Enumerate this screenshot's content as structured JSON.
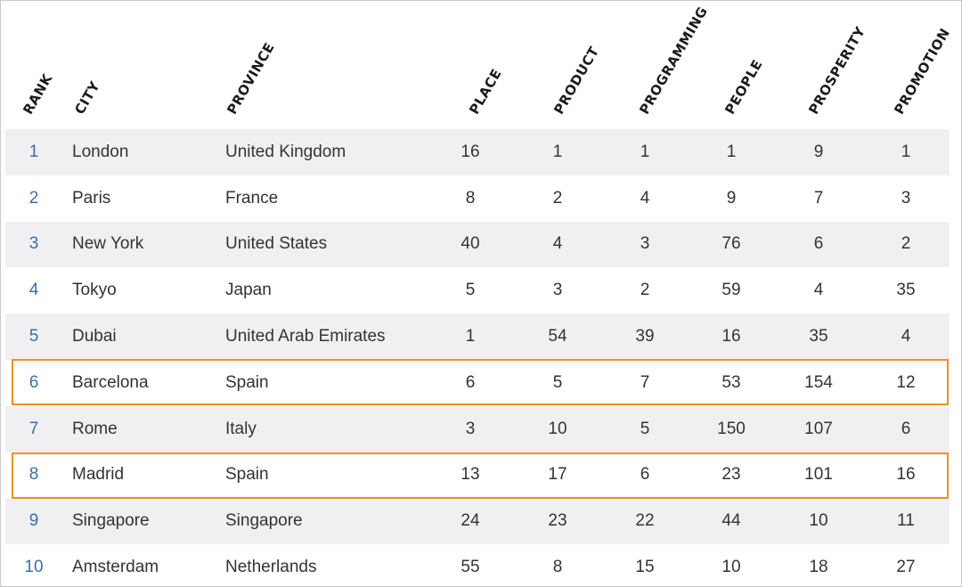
{
  "table": {
    "columns": [
      "RANK",
      "CITY",
      "PROVINCE",
      "PLACE",
      "PRODUCT",
      "PROGRAMMING",
      "PEOPLE",
      "PROSPERITY",
      "PROMOTION"
    ],
    "rows": [
      {
        "rank": "1",
        "city": "London",
        "province": "United Kingdom",
        "place": "16",
        "product": "1",
        "programming": "1",
        "people": "1",
        "prosperity": "9",
        "promotion": "1"
      },
      {
        "rank": "2",
        "city": "Paris",
        "province": "France",
        "place": "8",
        "product": "2",
        "programming": "4",
        "people": "9",
        "prosperity": "7",
        "promotion": "3"
      },
      {
        "rank": "3",
        "city": "New York",
        "province": "United States",
        "place": "40",
        "product": "4",
        "programming": "3",
        "people": "76",
        "prosperity": "6",
        "promotion": "2"
      },
      {
        "rank": "4",
        "city": "Tokyo",
        "province": "Japan",
        "place": "5",
        "product": "3",
        "programming": "2",
        "people": "59",
        "prosperity": "4",
        "promotion": "35"
      },
      {
        "rank": "5",
        "city": "Dubai",
        "province": "United Arab Emirates",
        "place": "1",
        "product": "54",
        "programming": "39",
        "people": "16",
        "prosperity": "35",
        "promotion": "4"
      },
      {
        "rank": "6",
        "city": "Barcelona",
        "province": "Spain",
        "place": "6",
        "product": "5",
        "programming": "7",
        "people": "53",
        "prosperity": "154",
        "promotion": "12"
      },
      {
        "rank": "7",
        "city": "Rome",
        "province": "Italy",
        "place": "3",
        "product": "10",
        "programming": "5",
        "people": "150",
        "prosperity": "107",
        "promotion": "6"
      },
      {
        "rank": "8",
        "city": "Madrid",
        "province": "Spain",
        "place": "13",
        "product": "17",
        "programming": "6",
        "people": "23",
        "prosperity": "101",
        "promotion": "16"
      },
      {
        "rank": "9",
        "city": "Singapore",
        "province": "Singapore",
        "place": "24",
        "product": "23",
        "programming": "22",
        "people": "44",
        "prosperity": "10",
        "promotion": "11"
      },
      {
        "rank": "10",
        "city": "Amsterdam",
        "province": "Netherlands",
        "place": "55",
        "product": "8",
        "programming": "15",
        "people": "10",
        "prosperity": "18",
        "promotion": "27"
      }
    ],
    "highlighted_ranks": [
      "6",
      "8"
    ],
    "colors": {
      "rank_text": "#3a6ea5",
      "highlight_border": "#f0901e",
      "stripe": "#f0f0f2",
      "body_text": "#333333"
    }
  }
}
